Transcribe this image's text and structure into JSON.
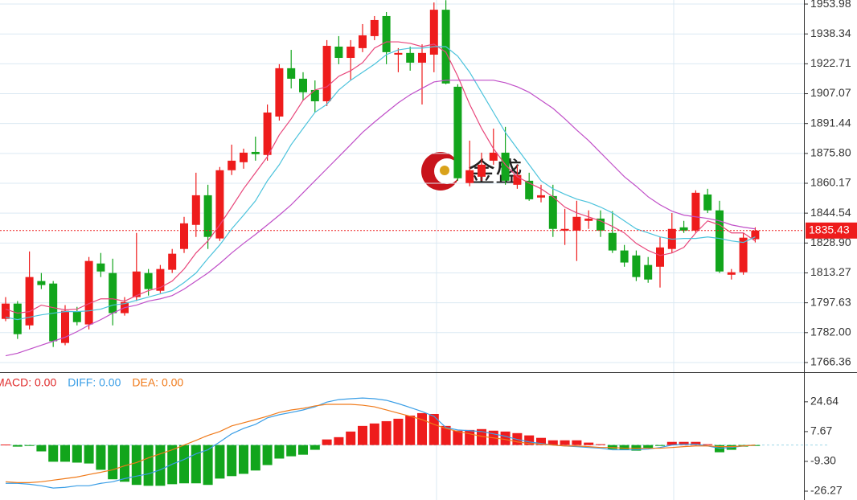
{
  "chart_data": [
    {
      "type": "candlestick",
      "watermark": "金盛",
      "up_color": "#ee1c1c",
      "down_color": "#12a51c",
      "open": [
        1789.2,
        1797.2,
        1785.8,
        1809.0,
        1807.7,
        1776.6,
        1793.0,
        1786.3,
        1818.2,
        1813.2,
        1792.2,
        1800.6,
        1813.2,
        1803.9,
        1814.9,
        1825.8,
        1838.4,
        1853.9,
        1831.3,
        1867.0,
        1871.2,
        1876.6,
        1875.0,
        1895.1,
        1920.4,
        1914.9,
        1909.0,
        1903.1,
        1931.7,
        1925.8,
        1930.9,
        1937.2,
        1947.7,
        1927.5,
        1928.4,
        1923.3,
        1927.5,
        1951.0,
        1910.7,
        1860.3,
        1863.6,
        1872.0,
        1876.2,
        1859.4,
        1861.5,
        1852.7,
        1853.5,
        1835.4,
        1835.4,
        1840.5,
        1841.7,
        1834.2,
        1825.0,
        1822.4,
        1817.4,
        1816.5,
        1825.8,
        1837.1,
        1835.4,
        1854.3,
        1846.0,
        1812.3,
        1813.6,
        1830.9
      ],
      "high": [
        1800.6,
        1798.5,
        1824.5,
        1813.2,
        1809.0,
        1796.4,
        1795.5,
        1821.6,
        1823.7,
        1820.7,
        1800.6,
        1834.2,
        1815.3,
        1817.4,
        1825.8,
        1842.6,
        1865.7,
        1859.4,
        1868.7,
        1880.4,
        1878.3,
        1884.6,
        1901.4,
        1922.5,
        1930.0,
        1918.3,
        1914.0,
        1935.1,
        1937.2,
        1935.1,
        1943.5,
        1947.7,
        1949.8,
        1930.9,
        1931.7,
        1932.9,
        1954.8,
        1956.0,
        1912.0,
        1882.5,
        1876.2,
        1888.8,
        1889.7,
        1869.9,
        1865.7,
        1859.4,
        1859.4,
        1846.8,
        1851.0,
        1846.0,
        1846.0,
        1845.6,
        1827.9,
        1825.0,
        1821.6,
        1832.1,
        1844.6,
        1840.5,
        1856.5,
        1857.3,
        1851.0,
        1815.3,
        1834.2,
        1837.1
      ],
      "low": [
        1788.0,
        1778.7,
        1783.7,
        1804.8,
        1774.5,
        1775.4,
        1785.8,
        1783.7,
        1811.1,
        1785.8,
        1790.9,
        1798.5,
        1801.4,
        1802.7,
        1813.2,
        1823.7,
        1832.1,
        1825.8,
        1830.0,
        1864.5,
        1867.8,
        1872.0,
        1872.0,
        1893.0,
        1909.8,
        1903.5,
        1897.2,
        1900.6,
        1922.5,
        1914.0,
        1928.8,
        1935.1,
        1922.5,
        1918.3,
        1919.1,
        1901.4,
        1918.3,
        1912.0,
        1861.5,
        1858.6,
        1861.5,
        1869.9,
        1859.4,
        1857.3,
        1851.0,
        1850.2,
        1832.1,
        1827.9,
        1819.5,
        1836.3,
        1832.1,
        1823.7,
        1816.5,
        1809.0,
        1808.1,
        1805.6,
        1823.7,
        1834.2,
        1834.2,
        1844.6,
        1813.2,
        1809.8,
        1812.3,
        1829.2
      ],
      "close": [
        1797.2,
        1781.2,
        1811.1,
        1806.9,
        1777.5,
        1793.4,
        1787.5,
        1819.5,
        1814.0,
        1792.2,
        1798.0,
        1814.0,
        1804.8,
        1815.3,
        1823.3,
        1839.2,
        1853.9,
        1832.1,
        1867.0,
        1872.0,
        1876.2,
        1875.4,
        1897.2,
        1920.4,
        1914.9,
        1907.8,
        1903.1,
        1932.1,
        1925.8,
        1931.7,
        1937.6,
        1945.6,
        1928.8,
        1928.4,
        1923.3,
        1928.4,
        1951.0,
        1912.4,
        1862.8,
        1867.0,
        1869.9,
        1876.2,
        1861.5,
        1864.5,
        1851.8,
        1853.9,
        1836.3,
        1836.3,
        1842.6,
        1841.7,
        1835.4,
        1825.0,
        1818.7,
        1811.1,
        1809.8,
        1826.6,
        1836.3,
        1835.4,
        1855.2,
        1846.0,
        1814.0,
        1813.6,
        1831.7,
        1835.43
      ],
      "series": [
        {
          "color": "#e8457a",
          "values": [
            1794.3,
            1792.2,
            1793.0,
            1796.4,
            1795.1,
            1793.9,
            1794.3,
            1797.2,
            1799.7,
            1799.7,
            1798.5,
            1801.4,
            1804.0,
            1805.6,
            1809.0,
            1815.3,
            1823.7,
            1830.0,
            1838.4,
            1847.7,
            1857.3,
            1865.7,
            1874.1,
            1885.5,
            1893.9,
            1903.6,
            1909.0,
            1910.7,
            1916.2,
            1919.1,
            1923.3,
            1930.9,
            1934.2,
            1934.2,
            1933.4,
            1931.7,
            1933.0,
            1928.8,
            1916.2,
            1901.5,
            1888.9,
            1878.3,
            1869.9,
            1863.6,
            1860.3,
            1857.3,
            1853.1,
            1847.7,
            1844.7,
            1842.6,
            1840.5,
            1837.6,
            1834.2,
            1828.7,
            1825.0,
            1822.4,
            1823.7,
            1826.6,
            1834.2,
            1840.5,
            1838.4,
            1834.2,
            1834.2,
            1830.0
          ]
        },
        {
          "color": "#4cc3dc",
          "values": [
            1790.1,
            1788.8,
            1790.1,
            1791.3,
            1792.2,
            1793.0,
            1793.0,
            1793.4,
            1794.3,
            1796.4,
            1797.2,
            1798.9,
            1800.6,
            1802.3,
            1804.0,
            1808.2,
            1813.2,
            1820.8,
            1827.9,
            1836.3,
            1843.5,
            1851.0,
            1861.5,
            1869.9,
            1880.4,
            1888.9,
            1897.3,
            1901.5,
            1909.0,
            1914.1,
            1918.3,
            1922.5,
            1927.5,
            1930.0,
            1930.9,
            1930.9,
            1931.7,
            1931.7,
            1926.7,
            1918.3,
            1907.8,
            1897.3,
            1886.8,
            1878.3,
            1869.9,
            1861.5,
            1857.3,
            1854.4,
            1851.9,
            1850.2,
            1847.7,
            1844.7,
            1840.5,
            1836.3,
            1834.2,
            1832.1,
            1830.9,
            1831.3,
            1831.3,
            1832.1,
            1831.3,
            1830.0,
            1829.2,
            1832.1
          ]
        },
        {
          "color": "#c04fc8",
          "values": [
            1769.9,
            1771.2,
            1773.3,
            1775.4,
            1777.5,
            1779.6,
            1782.5,
            1785.9,
            1788.8,
            1792.2,
            1795.1,
            1796.4,
            1798.5,
            1799.7,
            1801.4,
            1804.8,
            1809.0,
            1813.2,
            1818.2,
            1823.7,
            1828.7,
            1833.4,
            1838.4,
            1843.5,
            1848.9,
            1855.2,
            1861.5,
            1867.8,
            1874.1,
            1880.4,
            1886.8,
            1892.2,
            1897.3,
            1902.3,
            1906.5,
            1909.9,
            1913.2,
            1914.1,
            1914.1,
            1914.1,
            1914.1,
            1914.1,
            1912.8,
            1910.7,
            1907.8,
            1903.6,
            1899.4,
            1893.9,
            1888.0,
            1882.5,
            1876.2,
            1869.9,
            1863.6,
            1858.6,
            1853.1,
            1848.9,
            1845.6,
            1843.5,
            1842.6,
            1841.8,
            1840.5,
            1838.4,
            1837.2,
            1836.3
          ]
        }
      ],
      "last_price": 1835.43,
      "ylim": [
        1761.3,
        1956.1
      ],
      "yticks": [
        1953.98,
        1938.34,
        1922.71,
        1907.07,
        1891.44,
        {
          "value": 1875.8,
          "label": "1875.80"
        },
        1860.17,
        1844.54,
        {
          "value": 1828.9,
          "label": "1828.90"
        },
        1813.27,
        1797.63,
        {
          "value": 1782,
          "label": "1782.00"
        },
        1766.36
      ],
      "grid": true
    },
    {
      "type": "macd",
      "up_color": "#ee1c1c",
      "down_color": "#12a51c",
      "series": [
        {
          "name": "MACD: 0.00",
          "color": "#e02a2a",
          "kind": "bar",
          "values": [
            0.3,
            -0.9,
            -0.5,
            -3.6,
            -9.5,
            -9.5,
            -10,
            -10.5,
            -14.1,
            -19.5,
            -20.9,
            -22.7,
            -23.2,
            -23.2,
            -22.3,
            -21.8,
            -21.8,
            -22.7,
            -19.1,
            -17.7,
            -16.4,
            -14.5,
            -11.4,
            -7.7,
            -6.4,
            -5.5,
            -2.7,
            3.2,
            4.5,
            7.7,
            10.9,
            12.3,
            13.6,
            15.0,
            16.8,
            18.2,
            17.7,
            10.9,
            8.2,
            8.6,
            9.1,
            8.2,
            7.7,
            6.8,
            5.5,
            4.1,
            2.7,
            2.7,
            2.7,
            1.4,
            0.5,
            -2.3,
            -2.7,
            -3.2,
            -1.8,
            -0.5,
            1.8,
            1.8,
            1.8,
            0.5,
            -4.1,
            -2.7,
            -0.9,
            -0.5
          ]
        },
        {
          "name": "DIFF: 0.00",
          "color": "#3a9ee6",
          "kind": "line",
          "values": [
            -21.8,
            -21.8,
            -22.3,
            -23.2,
            -24.5,
            -24.1,
            -23.2,
            -23.2,
            -21.8,
            -20.9,
            -19.1,
            -17.7,
            -16.4,
            -14.1,
            -10.9,
            -8.2,
            -5.0,
            -2.7,
            1.8,
            6.4,
            9.5,
            11.8,
            15.5,
            17.3,
            18.6,
            20.0,
            21.8,
            24.5,
            25.9,
            26.4,
            26.8,
            26.4,
            25.5,
            23.6,
            21.4,
            19.1,
            16.4,
            10.0,
            8.6,
            8.2,
            7.7,
            6.4,
            5.0,
            3.2,
            1.8,
            0.9,
            0,
            -0.5,
            -0.9,
            -1.4,
            -1.8,
            -2.7,
            -2.7,
            -2.7,
            -2.3,
            -1.4,
            0,
            0.5,
            0.5,
            -0.5,
            -1.8,
            -1.4,
            -0.5,
            0
          ]
        },
        {
          "name": "DEA: 0.00",
          "color": "#f07a1a",
          "kind": "line",
          "values": [
            -20.9,
            -21.4,
            -21.4,
            -20.9,
            -20.0,
            -19.1,
            -18.2,
            -16.8,
            -15.5,
            -14.1,
            -11.8,
            -10.0,
            -7.3,
            -5.0,
            -2.7,
            0,
            2.7,
            5.5,
            7.7,
            10.9,
            12.7,
            14.5,
            16.4,
            18.6,
            20.0,
            20.9,
            22.3,
            23.2,
            23.2,
            23.2,
            22.7,
            21.8,
            20.0,
            18.2,
            16.4,
            14.5,
            11.8,
            9.5,
            7.7,
            6.4,
            5.0,
            4.1,
            3.2,
            1.8,
            0.9,
            0.5,
            0,
            -0.5,
            -0.5,
            -0.9,
            -1.4,
            -1.4,
            -1.8,
            -1.8,
            -1.8,
            -1.8,
            -1.4,
            -0.9,
            -0.5,
            -0.5,
            -0.9,
            -0.9,
            -0.5,
            0
          ]
        }
      ],
      "ylim": [
        -31.3,
        40.6
      ],
      "yticks": [
        24.64,
        7.67,
        {
          "value": -9.3,
          "label": "-9.30"
        },
        -26.27
      ]
    }
  ]
}
